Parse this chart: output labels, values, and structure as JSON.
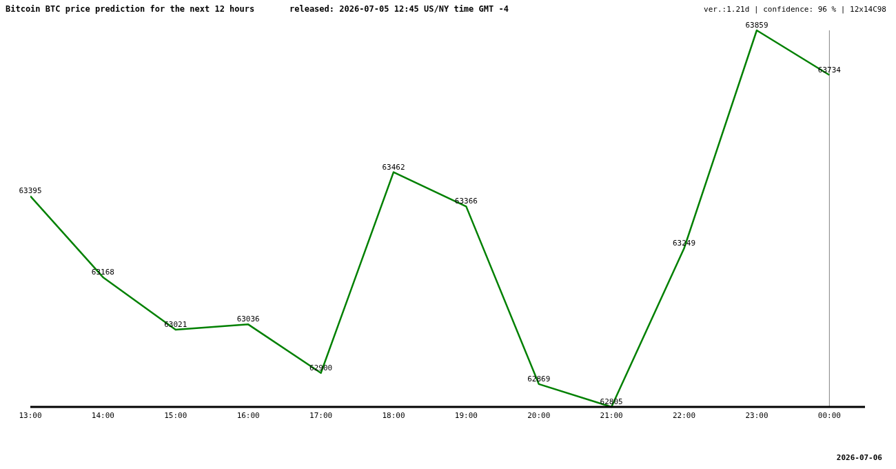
{
  "chart_data": {
    "type": "line",
    "title": "Bitcoin BTC price prediction for the next 12 hours",
    "subtitle": "released: 2026-07-05 12:45 US/NY time GMT -4",
    "categories": [
      "13:00",
      "14:00",
      "15:00",
      "16:00",
      "17:00",
      "18:00",
      "19:00",
      "20:00",
      "21:00",
      "22:00",
      "23:00",
      "00:00"
    ],
    "series": [
      {
        "color": "#008000",
        "values": [
          63395,
          63168,
          63021,
          63036,
          62900,
          63462,
          63366,
          62869,
          62805,
          63249,
          63859,
          63734
        ]
      }
    ],
    "data_labels": true,
    "ref_lines": [
      {
        "axis": "x",
        "value": "00:00",
        "color": "#808080"
      }
    ],
    "annotations": [
      "ver.:1.21d | confidence: 96 % | 12x14C98",
      "2026-07-06"
    ]
  }
}
